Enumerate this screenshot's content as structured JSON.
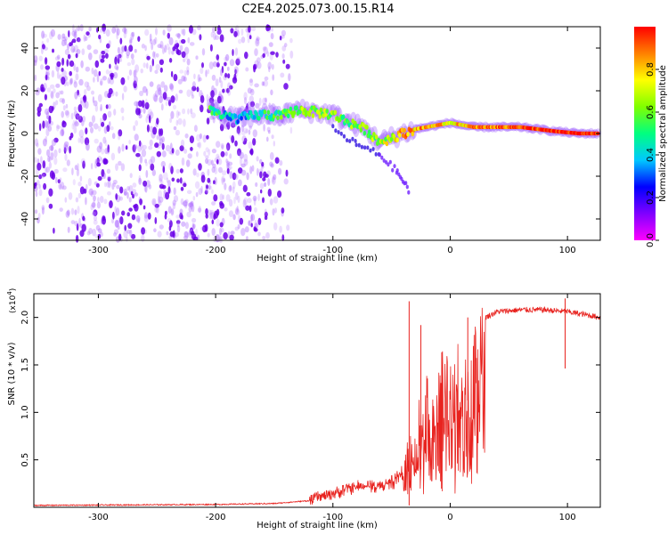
{
  "title": "C2E4.2025.073.00.15.R14",
  "colors": {
    "snr_line": "#e8231f",
    "spectrogram_scatter": "#7f00ff",
    "axis": "#000000"
  },
  "chart_data": [
    {
      "type": "heatmap",
      "name": "spectrogram",
      "xlabel": "Height of straight line (km)",
      "ylabel": "Frequency (Hz)",
      "xlim": [
        -355,
        128
      ],
      "ylim": [
        -50,
        50
      ],
      "xticks": [
        "-300",
        "-200",
        "-100",
        "0",
        "100"
      ],
      "yticks": [
        "-40",
        "-20",
        "0",
        "20",
        "40"
      ],
      "grid": false,
      "colorbar": {
        "label": "Normalized spectral amplitude",
        "range": [
          0,
          1
        ],
        "ticks": [
          "0.0",
          "0.2",
          "0.4",
          "0.6",
          "0.8"
        ],
        "colormap": [
          "#ff00ff",
          "#7f00ff",
          "#0000ff",
          "#00c8ff",
          "#00ff80",
          "#80ff00",
          "#ffff00",
          "#ff8000",
          "#ff0000"
        ]
      },
      "noise_region_x": [
        -355,
        -150
      ],
      "signal_track": [
        {
          "x": -205,
          "y": 12,
          "amp": 0.55
        },
        {
          "x": -195,
          "y": 8,
          "amp": 0.45
        },
        {
          "x": -180,
          "y": 7,
          "amp": 0.35
        },
        {
          "x": -160,
          "y": 9,
          "amp": 0.45
        },
        {
          "x": -145,
          "y": 8,
          "amp": 0.55
        },
        {
          "x": -130,
          "y": 11,
          "amp": 0.6
        },
        {
          "x": -115,
          "y": 10,
          "amp": 0.6
        },
        {
          "x": -100,
          "y": 9,
          "amp": 0.6
        },
        {
          "x": -90,
          "y": 6,
          "amp": 0.55
        },
        {
          "x": -80,
          "y": 4,
          "amp": 0.6
        },
        {
          "x": -70,
          "y": 1,
          "amp": 0.6
        },
        {
          "x": -60,
          "y": -4,
          "amp": 0.65
        },
        {
          "x": -50,
          "y": -2,
          "amp": 0.7
        },
        {
          "x": -40,
          "y": 0,
          "amp": 0.9
        },
        {
          "x": -30,
          "y": 2,
          "amp": 0.8
        },
        {
          "x": -20,
          "y": 3,
          "amp": 0.85
        },
        {
          "x": -10,
          "y": 4,
          "amp": 0.8
        },
        {
          "x": 0,
          "y": 5,
          "amp": 0.75
        },
        {
          "x": 10,
          "y": 4,
          "amp": 0.8
        },
        {
          "x": 20,
          "y": 3,
          "amp": 0.85
        },
        {
          "x": 40,
          "y": 3,
          "amp": 0.9
        },
        {
          "x": 60,
          "y": 3,
          "amp": 0.95
        },
        {
          "x": 75,
          "y": 2,
          "amp": 0.95
        },
        {
          "x": 90,
          "y": 1,
          "amp": 0.95
        },
        {
          "x": 110,
          "y": 0,
          "amp": 1.0
        },
        {
          "x": 128,
          "y": 0,
          "amp": 0.95
        }
      ],
      "side_branch": [
        {
          "x": -100,
          "y": 2
        },
        {
          "x": -80,
          "y": -5
        },
        {
          "x": -60,
          "y": -10
        },
        {
          "x": -45,
          "y": -18
        },
        {
          "x": -35,
          "y": -27
        }
      ]
    },
    {
      "type": "line",
      "name": "snr",
      "xlabel": "Height of straight line (km)",
      "ylabel": "SNR (10 * v/v)",
      "multiplier_label": "(x10",
      "multiplier_exponent": "4",
      "multiplier_close": ")",
      "xlim": [
        -355,
        128
      ],
      "ylim": [
        0,
        2.25
      ],
      "xticks": [
        "-300",
        "-200",
        "-100",
        "0",
        "100"
      ],
      "yticks": [
        "0.5",
        "1.0",
        "1.5",
        "2.0"
      ],
      "grid": false,
      "envelope": [
        {
          "x": -355,
          "y": 0.02
        },
        {
          "x": -200,
          "y": 0.03
        },
        {
          "x": -150,
          "y": 0.04
        },
        {
          "x": -120,
          "y": 0.07
        },
        {
          "x": -100,
          "y": 0.14
        },
        {
          "x": -90,
          "y": 0.2
        },
        {
          "x": -80,
          "y": 0.22
        },
        {
          "x": -70,
          "y": 0.25
        },
        {
          "x": -60,
          "y": 0.22
        },
        {
          "x": -50,
          "y": 0.28
        },
        {
          "x": -40,
          "y": 0.4
        },
        {
          "x": -35,
          "y": 0.55
        },
        {
          "x": -30,
          "y": 0.85
        },
        {
          "x": -25,
          "y": 1.0
        },
        {
          "x": -20,
          "y": 1.2
        },
        {
          "x": -15,
          "y": 1.3
        },
        {
          "x": -10,
          "y": 1.4
        },
        {
          "x": -5,
          "y": 1.5
        },
        {
          "x": 0,
          "y": 1.5
        },
        {
          "x": 10,
          "y": 1.6
        },
        {
          "x": 20,
          "y": 1.85
        },
        {
          "x": 30,
          "y": 2.0
        },
        {
          "x": 40,
          "y": 2.06
        },
        {
          "x": 60,
          "y": 2.08
        },
        {
          "x": 80,
          "y": 2.08
        },
        {
          "x": 100,
          "y": 2.06
        },
        {
          "x": 115,
          "y": 2.03
        },
        {
          "x": 128,
          "y": 2.0
        }
      ],
      "spikes": [
        {
          "x": -35,
          "y": 2.17
        },
        {
          "x": -25,
          "y": 1.92
        },
        {
          "x": 15,
          "y": 2.0
        },
        {
          "x": 98,
          "y": 2.2
        }
      ]
    }
  ]
}
